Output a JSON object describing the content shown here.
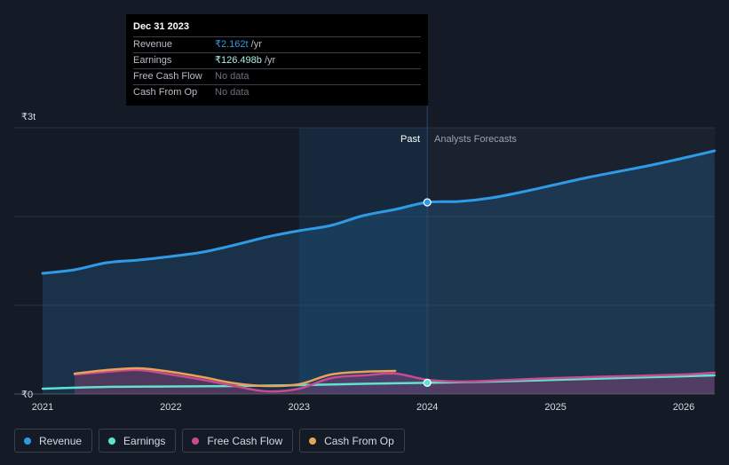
{
  "tooltip": {
    "date": "Dec 31 2023",
    "rows": [
      {
        "label": "Revenue",
        "value": "₹2.162t",
        "unit": " /yr"
      },
      {
        "label": "Earnings",
        "value": "₹126.498b",
        "unit": " /yr"
      },
      {
        "label": "Free Cash Flow",
        "value": "No data"
      },
      {
        "label": "Cash From Op",
        "value": "No data"
      }
    ]
  },
  "labels": {
    "past": "Past",
    "forecast": "Analysts Forecasts"
  },
  "legend": [
    {
      "label": "Revenue",
      "color": "#2f9be7"
    },
    {
      "label": "Earnings",
      "color": "#5ee3d0"
    },
    {
      "label": "Free Cash Flow",
      "color": "#c94a8e"
    },
    {
      "label": "Cash From Op",
      "color": "#e8a25a"
    }
  ],
  "chart_data": {
    "type": "line",
    "y_tick_labels": [
      "₹3t",
      "₹0"
    ],
    "ylim": [
      0,
      3.0
    ],
    "x_ticks": [
      {
        "label": "2021",
        "x": 2021.0
      },
      {
        "label": "2022",
        "x": 2022.0
      },
      {
        "label": "2023",
        "x": 2023.0
      },
      {
        "label": "2024",
        "x": 2024.0
      },
      {
        "label": "2025",
        "x": 2025.0
      },
      {
        "label": "2026",
        "x": 2026.0
      }
    ],
    "xlim": [
      2021.0,
      2026.24
    ],
    "past_end": 2024.0,
    "highlight_start": 2023.0,
    "grid": true,
    "series": [
      {
        "name": "Revenue",
        "color": "#2f9be7",
        "area": true,
        "x": [
          2021.0,
          2021.25,
          2021.5,
          2021.75,
          2022.0,
          2022.25,
          2022.5,
          2022.75,
          2023.0,
          2023.25,
          2023.5,
          2023.75,
          2024.0,
          2024.25,
          2024.5,
          2024.75,
          2025.0,
          2025.25,
          2025.5,
          2025.75,
          2026.0,
          2026.24
        ],
        "y": [
          1.36,
          1.4,
          1.48,
          1.51,
          1.55,
          1.6,
          1.68,
          1.77,
          1.84,
          1.9,
          2.01,
          2.08,
          2.16,
          2.17,
          2.21,
          2.28,
          2.36,
          2.44,
          2.51,
          2.58,
          2.66,
          2.74
        ]
      },
      {
        "name": "Earnings",
        "color": "#5ee3d0",
        "area": false,
        "x": [
          2021.0,
          2021.5,
          2022.0,
          2022.5,
          2023.0,
          2023.5,
          2024.0,
          2024.5,
          2025.0,
          2025.5,
          2026.0,
          2026.24
        ],
        "y": [
          0.06,
          0.08,
          0.085,
          0.09,
          0.1,
          0.115,
          0.126,
          0.14,
          0.16,
          0.18,
          0.2,
          0.21
        ]
      },
      {
        "name": "Free Cash Flow",
        "color": "#c94a8e",
        "area": true,
        "x": [
          2021.25,
          2021.5,
          2021.75,
          2022.0,
          2022.25,
          2022.5,
          2022.75,
          2023.0,
          2023.25,
          2023.5,
          2023.75,
          2024.0,
          2024.25,
          2024.5,
          2025.0,
          2025.5,
          2026.0,
          2026.24
        ],
        "y": [
          0.22,
          0.25,
          0.27,
          0.22,
          0.16,
          0.09,
          0.03,
          0.06,
          0.18,
          0.21,
          0.23,
          0.16,
          0.14,
          0.15,
          0.18,
          0.2,
          0.22,
          0.24
        ]
      },
      {
        "name": "Cash From Op",
        "color": "#e8a25a",
        "area": false,
        "x": [
          2021.25,
          2021.5,
          2021.75,
          2022.0,
          2022.25,
          2022.5,
          2022.75,
          2023.0,
          2023.25,
          2023.5,
          2023.75
        ],
        "y": [
          0.23,
          0.27,
          0.29,
          0.25,
          0.19,
          0.12,
          0.09,
          0.11,
          0.22,
          0.25,
          0.26
        ]
      }
    ],
    "highlight_points": [
      {
        "series": "Revenue",
        "x": 2024.0,
        "y": 2.16
      },
      {
        "series": "Earnings",
        "x": 2024.0,
        "y": 0.126
      }
    ]
  }
}
